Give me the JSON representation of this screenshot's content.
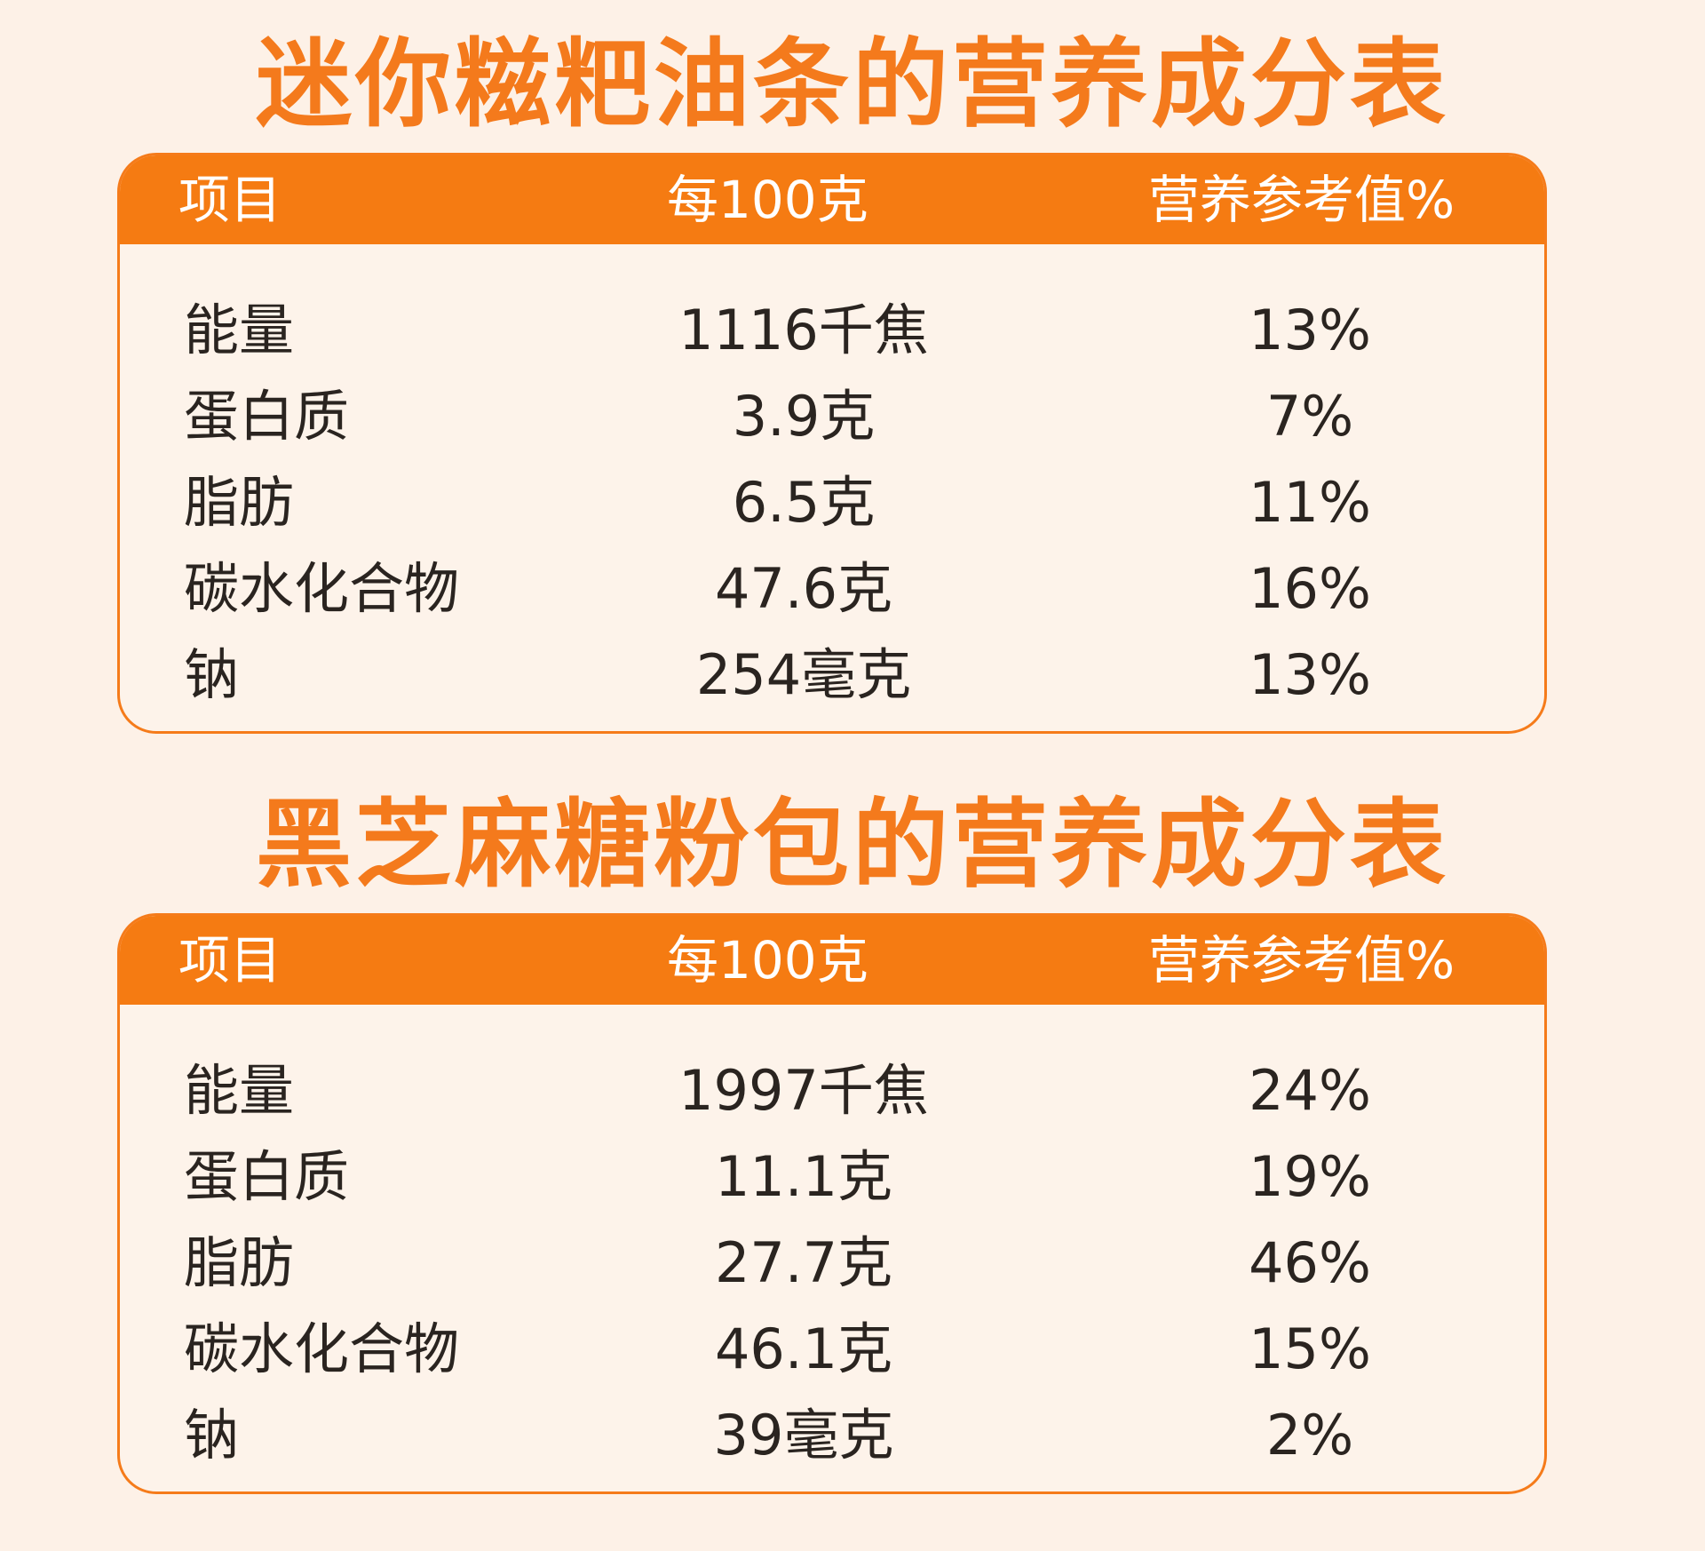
{
  "header_labels": {
    "item": "项目",
    "per_100g": "每100克",
    "nrv": "营养参考值%"
  },
  "tables": [
    {
      "title": "迷你糍粑油条的营养成分表",
      "rows": [
        {
          "name": "能量",
          "amount": "1116千焦",
          "nrv": "13%"
        },
        {
          "name": "蛋白质",
          "amount": "3.9克",
          "nrv": "7%"
        },
        {
          "name": "脂肪",
          "amount": "6.5克",
          "nrv": "11%"
        },
        {
          "name": "碳水化合物",
          "amount": "47.6克",
          "nrv": "16%"
        },
        {
          "name": "钠",
          "amount": "254毫克",
          "nrv": "13%"
        }
      ]
    },
    {
      "title": "黑芝麻糖粉包的营养成分表",
      "rows": [
        {
          "name": "能量",
          "amount": "1997千焦",
          "nrv": "24%"
        },
        {
          "name": "蛋白质",
          "amount": "11.1克",
          "nrv": "19%"
        },
        {
          "name": "脂肪",
          "amount": "27.7克",
          "nrv": "46%"
        },
        {
          "name": "碳水化合物",
          "amount": "46.1克",
          "nrv": "15%"
        },
        {
          "name": "钠",
          "amount": "39毫克",
          "nrv": "2%"
        }
      ]
    }
  ],
  "colors": {
    "accent": "#f57b12",
    "background": "#fdf1e7",
    "text": "#2a2420"
  }
}
